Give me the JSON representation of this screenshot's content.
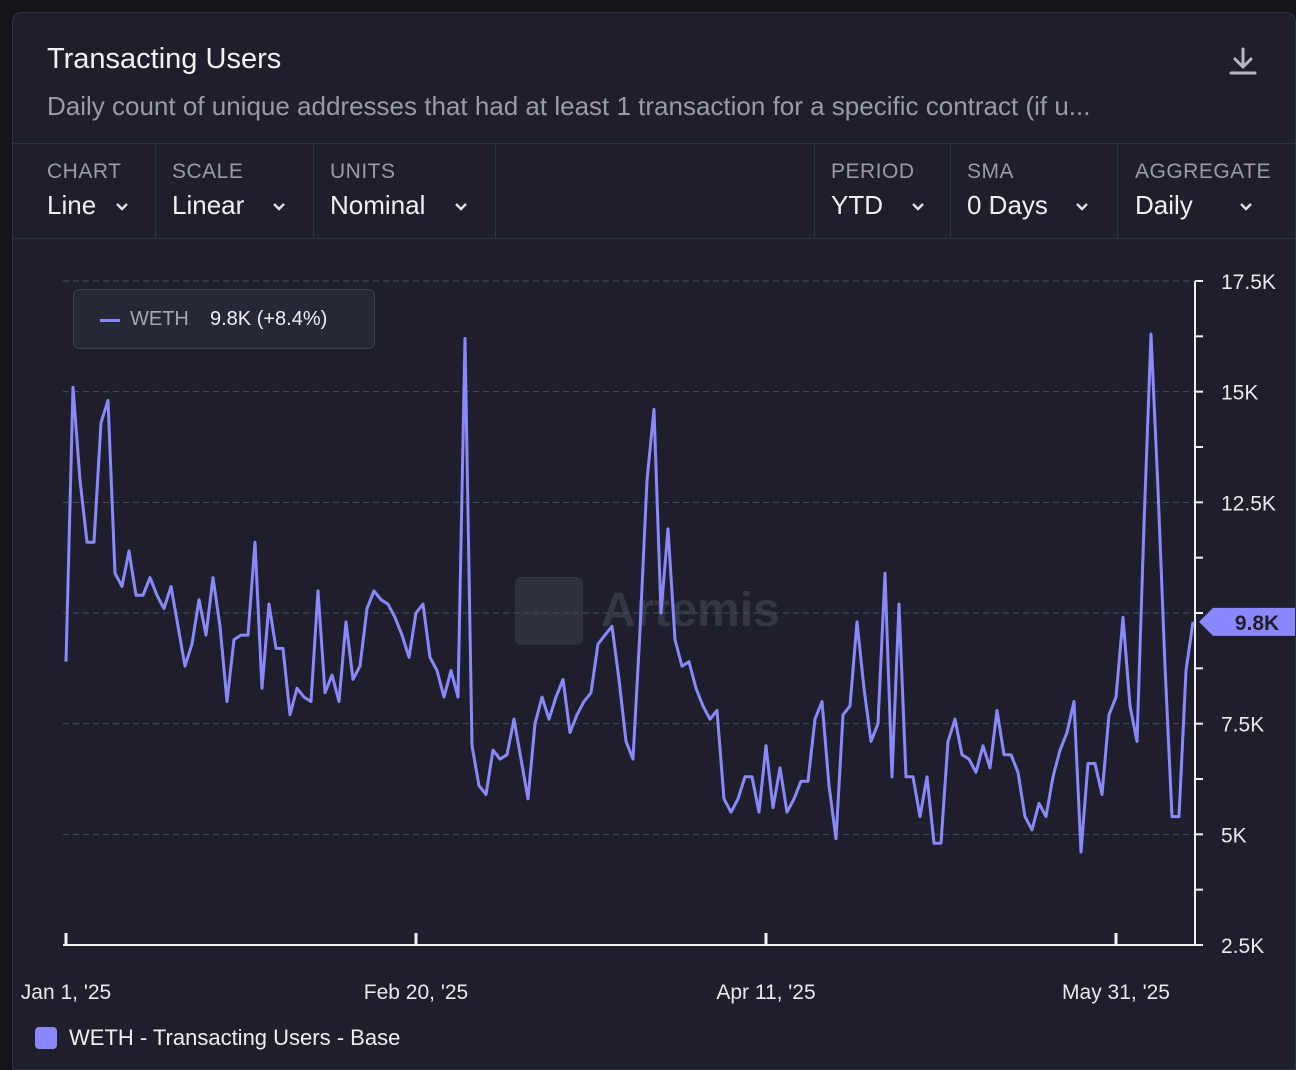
{
  "header": {
    "title": "Transacting Users",
    "subtitle": "Daily count of unique addresses that had at least 1 transaction for a specific contract (if u..."
  },
  "controls": {
    "chart": {
      "label": "CHART",
      "value": "Line"
    },
    "scale": {
      "label": "SCALE",
      "value": "Linear"
    },
    "units": {
      "label": "UNITS",
      "value": "Nominal"
    },
    "period": {
      "label": "PERIOD",
      "value": "YTD"
    },
    "sma": {
      "label": "SMA",
      "value": "0 Days"
    },
    "aggregate": {
      "label": "AGGREGATE",
      "value": "Daily"
    }
  },
  "tooltip": {
    "series": "WETH",
    "value": "9.8K (+8.4%)"
  },
  "watermark": "Artemis",
  "legend": {
    "label": "WETH - Transacting Users - Base"
  },
  "colors": {
    "series": "#8b87ff",
    "background": "#1e1f2b"
  },
  "chart_data": {
    "type": "line",
    "title": "Transacting Users",
    "series": [
      {
        "name": "WETH - Transacting Users - Base",
        "start_date": "Jan 1, '25",
        "step_days": 1,
        "values": [
          8900,
          15100,
          13000,
          11600,
          11600,
          14300,
          14800,
          10900,
          10600,
          11400,
          10400,
          10400,
          10800,
          10400,
          10100,
          10600,
          9700,
          8800,
          9300,
          10300,
          9500,
          10800,
          9700,
          8000,
          9400,
          9500,
          9500,
          11600,
          8300,
          10200,
          9200,
          9200,
          7700,
          8300,
          8100,
          8000,
          10500,
          8200,
          8600,
          8000,
          9800,
          8500,
          8800,
          10100,
          10500,
          10300,
          10200,
          9900,
          9500,
          9000,
          10000,
          10200,
          9000,
          8700,
          8100,
          8700,
          8100,
          16200,
          7000,
          6100,
          5900,
          6900,
          6700,
          6800,
          7600,
          6700,
          5800,
          7500,
          8100,
          7600,
          8100,
          8500,
          7300,
          7700,
          8000,
          8200,
          9300,
          9500,
          9700,
          8500,
          7100,
          6700,
          9600,
          13000,
          14600,
          10000,
          11900,
          9400,
          8800,
          8900,
          8300,
          7900,
          7600,
          7800,
          5800,
          5500,
          5800,
          6300,
          6300,
          5500,
          7000,
          5600,
          6500,
          5500,
          5800,
          6200,
          6200,
          7600,
          8000,
          6100,
          4900,
          7700,
          7900,
          9800,
          8300,
          7100,
          7500,
          10900,
          6300,
          10200,
          6300,
          6300,
          5400,
          6300,
          4800,
          4800,
          7100,
          7600,
          6800,
          6700,
          6400,
          7000,
          6500,
          7800,
          6800,
          6800,
          6400,
          5400,
          5100,
          5700,
          5400,
          6300,
          6900,
          7300,
          8000,
          4600,
          6600,
          6600,
          5900,
          7700,
          8100,
          9900,
          7900,
          7100,
          12000,
          16300,
          12800,
          8800,
          5400,
          5400,
          8700,
          9800
        ]
      }
    ],
    "x_ticks": [
      "Jan 1, '25",
      "Feb 20, '25",
      "Apr 11, '25",
      "May 31, '25"
    ],
    "x_tick_offsets": [
      0,
      50,
      100,
      150
    ],
    "y_ticks": [
      "2.5K",
      "5K",
      "7.5K",
      "12.5K",
      "15K",
      "17.5K"
    ],
    "y_tick_values": [
      2500,
      5000,
      7500,
      12500,
      15000,
      17500
    ],
    "ylim": [
      2500,
      17500
    ],
    "gridlines": [
      5000,
      7500,
      10000,
      12500,
      15000,
      17500
    ],
    "current_value_label": "9.8K",
    "current_value": 9800,
    "legend_position": "bottom-left"
  }
}
